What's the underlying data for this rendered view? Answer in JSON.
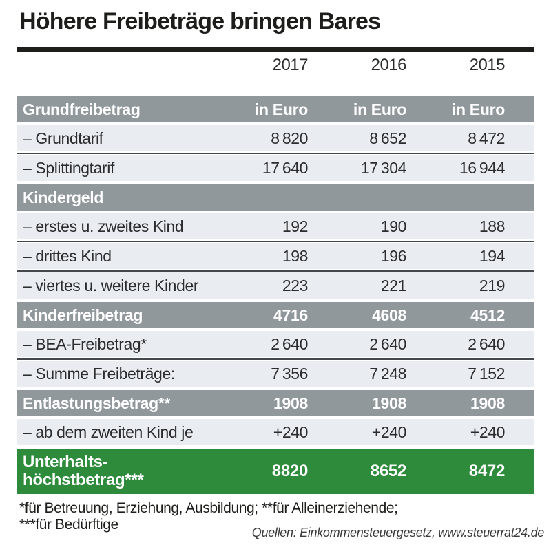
{
  "title": "Höhere Freibeträge bringen Bares",
  "chart_data": {
    "type": "table",
    "title": "Höhere Freibeträge bringen Bares",
    "unit": "Euro",
    "year_columns": [
      "2017",
      "2016",
      "2015"
    ],
    "sections": [
      {
        "header": {
          "label": "Grundfreibetrag",
          "values": [
            "in Euro",
            "in Euro",
            "in Euro"
          ]
        },
        "rows": [
          {
            "label": "– Grundtarif",
            "values": [
              "8 820",
              "8 652",
              "8 472"
            ]
          },
          {
            "label": "– Splittingtarif",
            "values": [
              "17 640",
              "17 304",
              "16 944"
            ]
          }
        ]
      },
      {
        "header": {
          "label": "Kindergeld",
          "values": [
            "",
            "",
            ""
          ]
        },
        "rows": [
          {
            "label": "– erstes u. zweites Kind",
            "values": [
              "192",
              "190",
              "188"
            ]
          },
          {
            "label": "– drittes Kind",
            "values": [
              "198",
              "196",
              "194"
            ]
          },
          {
            "label": "– viertes u. weitere Kinder",
            "values": [
              "223",
              "221",
              "219"
            ]
          }
        ]
      },
      {
        "header": {
          "label": "Kinderfreibetrag",
          "values": [
            "4716",
            "4608",
            "4512"
          ]
        },
        "rows": [
          {
            "label": "– BEA-Freibetrag*",
            "values": [
              "2 640",
              "2 640",
              "2 640"
            ]
          },
          {
            "label": "– Summe Freibeträge:",
            "values": [
              "7 356",
              "7 248",
              "7 152"
            ]
          }
        ]
      },
      {
        "header": {
          "label": "Entlastungsbetrag**",
          "values": [
            "1908",
            "1908",
            "1908"
          ]
        },
        "rows": [
          {
            "label": "– ab dem zweiten Kind je",
            "values": [
              "+240",
              "+240",
              "+240"
            ]
          }
        ]
      }
    ],
    "total_row": {
      "label": "Unterhalts­höchstbetrag***",
      "label_lines": [
        "Unterhalts-",
        "höchstbetrag***"
      ],
      "values": [
        "8820",
        "8652",
        "8472"
      ]
    }
  },
  "footnotes": {
    "line1": "*für Betreuung, Erziehung, Ausbildung; **für Alleinerziehende;",
    "line2": "***für Bedürftige"
  },
  "source": "Quellen: Einkommensteuergesetz, www.steuerrat24.de",
  "colors": {
    "header_gray": "#91989c",
    "row_light": "#e9edf1",
    "separator_dark": "#43484c",
    "total_green": "#2e8b3c",
    "rule_black": "#1d1d1b"
  }
}
